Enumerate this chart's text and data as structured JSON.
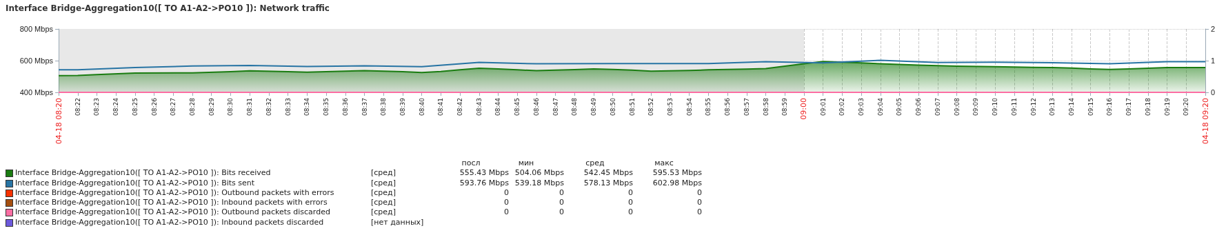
{
  "chart_data": {
    "type": "line",
    "title": "Interface Bridge-Aggregation10([ TO A1-A2->PO10 ]): Network traffic",
    "xlim": [
      8.35,
      9.35
    ],
    "xticks": [
      {
        "value": 8.35,
        "label": "04-18 08:20"
      },
      {
        "value": 8.3667,
        "label": "08:22"
      },
      {
        "value": 8.3833,
        "label": "08:23"
      },
      {
        "value": 8.4,
        "label": "08:24"
      },
      {
        "value": 8.4167,
        "label": "08:25"
      },
      {
        "value": 8.4333,
        "label": "08:26"
      },
      {
        "value": 8.45,
        "label": "08:27"
      },
      {
        "value": 8.4667,
        "label": "08:28"
      },
      {
        "value": 8.4833,
        "label": "08:29"
      },
      {
        "value": 8.5,
        "label": "08:30"
      },
      {
        "value": 8.5167,
        "label": "08:31"
      },
      {
        "value": 8.5333,
        "label": "08:32"
      },
      {
        "value": 8.55,
        "label": "08:33"
      },
      {
        "value": 8.5667,
        "label": "08:34"
      },
      {
        "value": 8.5833,
        "label": "08:35"
      },
      {
        "value": 8.6,
        "label": "08:36"
      },
      {
        "value": 8.6167,
        "label": "08:37"
      },
      {
        "value": 8.6333,
        "label": "08:38"
      },
      {
        "value": 8.65,
        "label": "08:39"
      },
      {
        "value": 8.6667,
        "label": "08:40"
      },
      {
        "value": 8.6833,
        "label": "08:41"
      },
      {
        "value": 8.7,
        "label": "08:42"
      },
      {
        "value": 8.7167,
        "label": "08:43"
      },
      {
        "value": 8.7333,
        "label": "08:44"
      },
      {
        "value": 8.75,
        "label": "08:45"
      },
      {
        "value": 8.7667,
        "label": "08:46"
      },
      {
        "value": 8.7833,
        "label": "08:47"
      },
      {
        "value": 8.8,
        "label": "08:48"
      },
      {
        "value": 8.8167,
        "label": "08:49"
      },
      {
        "value": 8.8333,
        "label": "08:50"
      },
      {
        "value": 8.85,
        "label": "08:51"
      },
      {
        "value": 8.8667,
        "label": "08:52"
      },
      {
        "value": 8.8833,
        "label": "08:53"
      },
      {
        "value": 8.9,
        "label": "08:54"
      },
      {
        "value": 8.9167,
        "label": "08:55"
      },
      {
        "value": 8.9333,
        "label": "08:56"
      },
      {
        "value": 8.95,
        "label": "08:57"
      },
      {
        "value": 8.9667,
        "label": "08:58"
      },
      {
        "value": 8.9833,
        "label": "08:59"
      },
      {
        "value": 9,
        "label": "09:00"
      },
      {
        "value": 9.0167,
        "label": "09:01"
      },
      {
        "value": 9.0333,
        "label": "09:02"
      },
      {
        "value": 9.05,
        "label": "09:03"
      },
      {
        "value": 9.0667,
        "label": "09:04"
      },
      {
        "value": 9.0833,
        "label": "09:05"
      },
      {
        "value": 9.1,
        "label": "09:06"
      },
      {
        "value": 9.1167,
        "label": "09:07"
      },
      {
        "value": 9.1333,
        "label": "09:08"
      },
      {
        "value": 9.15,
        "label": "09:09"
      },
      {
        "value": 9.1667,
        "label": "09:10"
      },
      {
        "value": 9.1833,
        "label": "09:11"
      },
      {
        "value": 9.2,
        "label": "09:12"
      },
      {
        "value": 9.2167,
        "label": "09:13"
      },
      {
        "value": 9.2333,
        "label": "09:14"
      },
      {
        "value": 9.25,
        "label": "09:15"
      },
      {
        "value": 9.2667,
        "label": "09:16"
      },
      {
        "value": 9.2833,
        "label": "09:17"
      },
      {
        "value": 9.3,
        "label": "09:18"
      },
      {
        "value": 9.3167,
        "label": "09:19"
      },
      {
        "value": 9.3333,
        "label": "09:20"
      },
      {
        "value": 9.35,
        "label": "04-18 09:20"
      }
    ],
    "ylim": [
      400,
      800
    ],
    "yticks": [
      {
        "value": 400,
        "label": "400 Mbps"
      },
      {
        "value": 600,
        "label": "600 Mbps"
      },
      {
        "value": 800,
        "label": "800 Mbps"
      }
    ],
    "y2lim": [
      0,
      2
    ],
    "y2ticks": [
      0,
      1,
      2
    ],
    "grid": true,
    "legend": "bottom",
    "marker": "none",
    "line_style": "solid",
    "bands": [
      {
        "axis": "x",
        "from": 8.35,
        "to": 9,
        "color": "#e8e8e8"
      }
    ],
    "series": [
      {
        "name": "Interface Bridge-Aggregation10([ TO A1-A2->PO10 ]): Bits received",
        "type": "area",
        "color": "#1a7c11",
        "x": [
          8.35,
          8.3667,
          8.3833,
          8.4167,
          8.4667,
          8.5,
          8.5167,
          8.55,
          8.5667,
          8.5833,
          8.6167,
          8.65,
          8.6667,
          8.6833,
          8.7,
          8.7167,
          8.7333,
          8.75,
          8.7667,
          8.8,
          8.8167,
          8.8333,
          8.85,
          8.8667,
          8.9,
          8.9167,
          8.95,
          8.9667,
          8.9833,
          9,
          9.0167,
          9.0333,
          9.05,
          9.0667,
          9.0833,
          9.1,
          9.1167,
          9.1333,
          9.1667,
          9.2,
          9.2167,
          9.2333,
          9.25,
          9.2667,
          9.2833,
          9.3,
          9.3167,
          9.35
        ],
        "values": [
          505,
          506,
          512,
          522,
          523,
          530,
          536,
          530,
          527,
          530,
          537,
          530,
          525,
          532,
          542,
          552,
          548,
          542,
          537,
          543,
          548,
          545,
          540,
          534,
          538,
          542,
          547,
          550,
          565,
          580,
          595,
          590,
          586,
          580,
          576,
          572,
          568,
          565,
          562,
          558,
          557,
          553,
          548,
          545,
          548,
          552,
          556,
          556
        ]
      },
      {
        "name": "Interface Bridge-Aggregation10([ TO A1-A2->PO10 ]): Bits sent",
        "color": "#2774a4",
        "x": [
          8.35,
          8.3667,
          8.4167,
          8.4667,
          8.5167,
          8.5667,
          8.6167,
          8.6667,
          8.7167,
          8.7667,
          8.8333,
          8.9167,
          8.9667,
          9.0167,
          9.0667,
          9.1167,
          9.1667,
          9.2167,
          9.2667,
          9.3167,
          9.35
        ],
        "values": [
          542,
          542,
          556,
          566,
          570,
          563,
          567,
          562,
          589,
          580,
          582,
          582,
          593,
          586,
          602,
          588,
          590,
          587,
          580,
          594,
          594
        ]
      },
      {
        "name": "Interface Bridge-Aggregation10([ TO A1-A2->PO10 ]): Outbound packets with errors",
        "color": "#f63100",
        "axis": "y2",
        "values": [
          null
        ]
      },
      {
        "name": "Interface Bridge-Aggregation10([ TO A1-A2->PO10 ]): Inbound packets with errors",
        "color": "#a54f10",
        "axis": "y2",
        "values": [
          null
        ]
      },
      {
        "name": "Interface Bridge-Aggregation10([ TO A1-A2->PO10 ]): Outbound packets discarded",
        "color": "#fc6ea3",
        "axis": "y2",
        "x": [
          8.35,
          9.35
        ],
        "values": [
          0,
          0
        ]
      },
      {
        "name": "Interface Bridge-Aggregation10([ TO A1-A2->PO10 ]): Inbound packets discarded",
        "color": "#6c59dc",
        "axis": "y2",
        "values": [
          null
        ]
      }
    ],
    "annotations": [
      "посл",
      "мин",
      "сред",
      "макс",
      "[сред]",
      "555.43 Mbps",
      "504.06 Mbps",
      "542.45 Mbps",
      "595.53 Mbps",
      "[сред]",
      "593.76 Mbps",
      "539.18 Mbps",
      "578.13 Mbps",
      "602.98 Mbps",
      "[сред]",
      "0",
      "0",
      "0",
      "0",
      "[сред]",
      "0",
      "0",
      "0",
      "0",
      "[сред]",
      "0",
      "0",
      "0",
      "0",
      "[нет данных]"
    ]
  }
}
